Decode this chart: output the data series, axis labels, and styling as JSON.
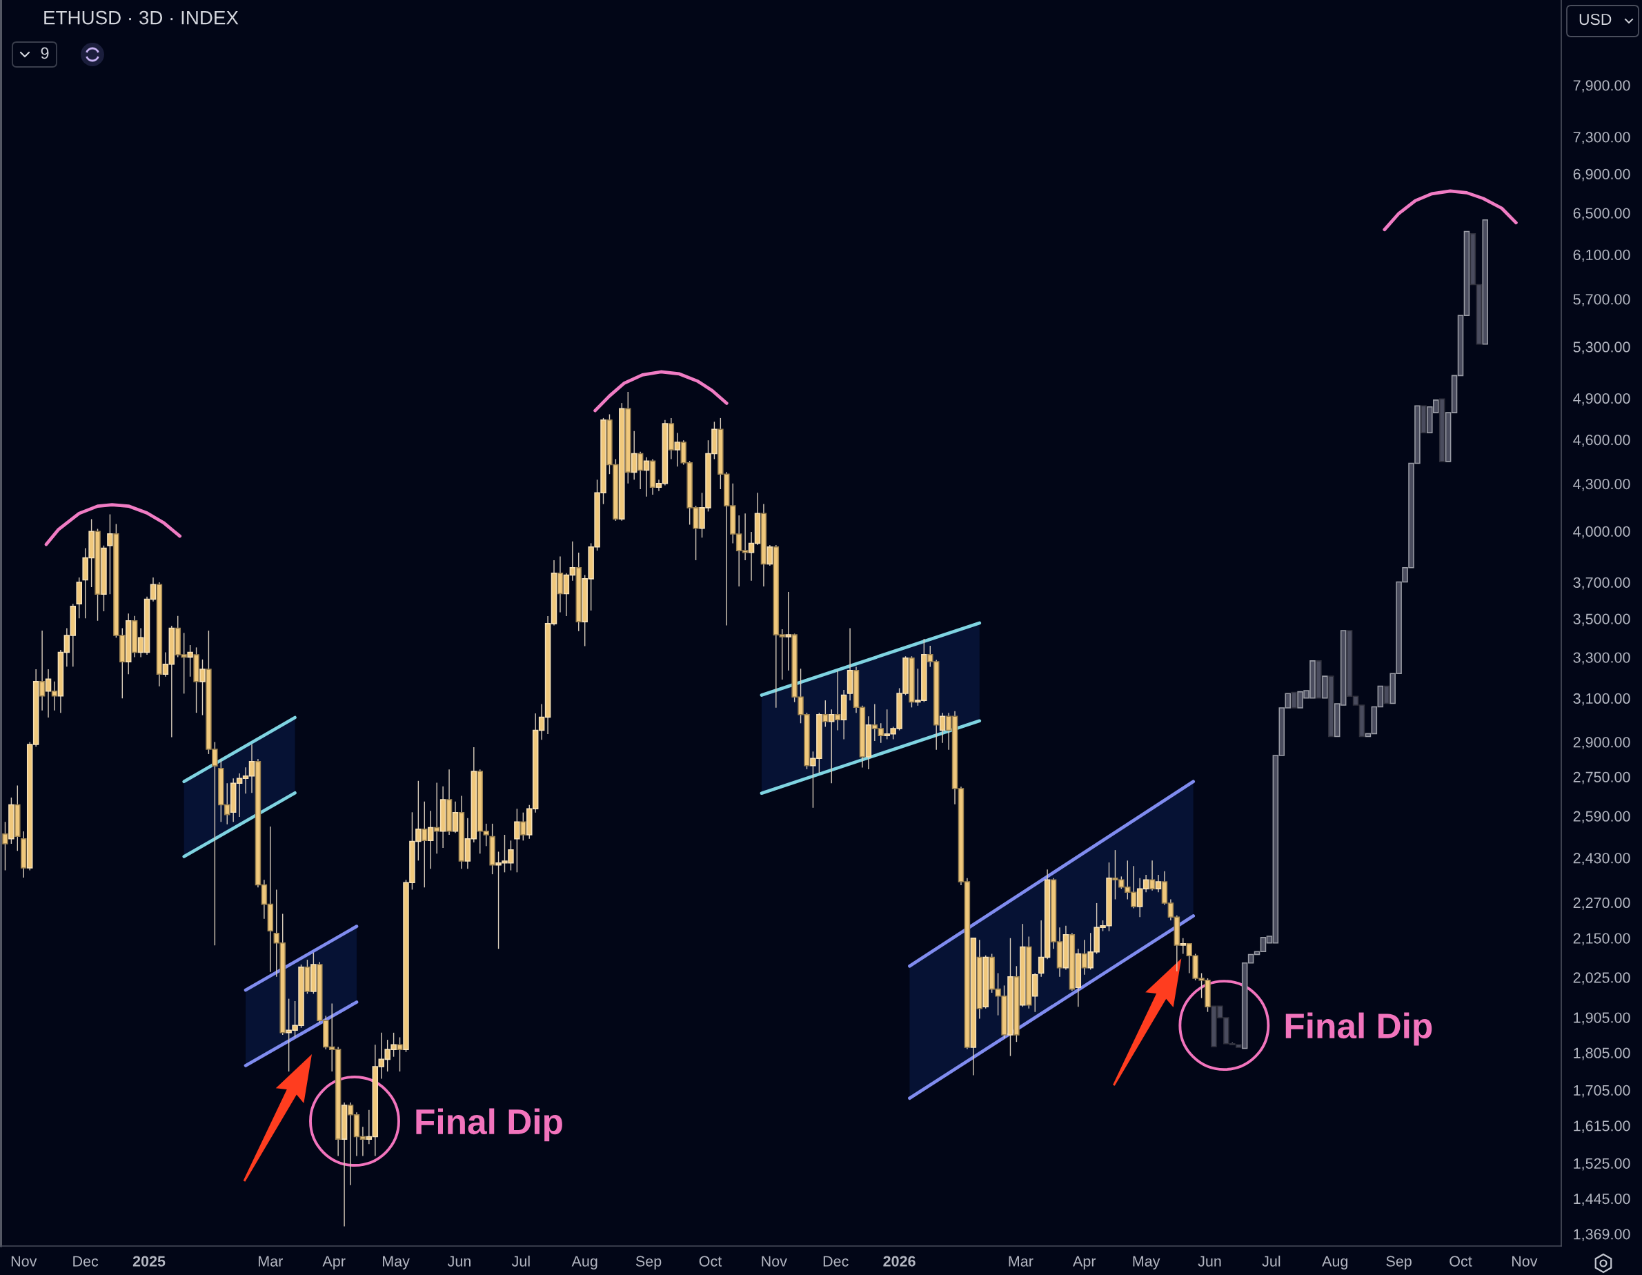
{
  "chart_data": {
    "type": "candlestick",
    "title": "ETHUSD · 3D · INDEX",
    "ylabel": "USD",
    "annotations": [
      "9",
      {
        "text": "Final Dip",
        "x": "2025-04-11",
        "y": 1626
      },
      {
        "text": "Final Dip",
        "x": "2026-06-08",
        "y": 1882
      }
    ],
    "xlim": [
      "2024-10-21",
      "2026-11-19"
    ],
    "ylim": [
      1344,
      8996
    ],
    "log": true,
    "grid": false,
    "xticks": [
      {
        "value": "2024-11-01",
        "label": "Nov"
      },
      {
        "value": "2024-12-01",
        "label": "Dec"
      },
      {
        "value": "2025-01-01",
        "label": "2025"
      },
      {
        "value": "2025-03-01",
        "label": "Mar"
      },
      {
        "value": "2025-04-01",
        "label": "Apr"
      },
      {
        "value": "2025-05-01",
        "label": "May"
      },
      {
        "value": "2025-06-01",
        "label": "Jun"
      },
      {
        "value": "2025-07-01",
        "label": "Jul"
      },
      {
        "value": "2025-08-01",
        "label": "Aug"
      },
      {
        "value": "2025-09-01",
        "label": "Sep"
      },
      {
        "value": "2025-10-01",
        "label": "Oct"
      },
      {
        "value": "2025-11-01",
        "label": "Nov"
      },
      {
        "value": "2025-12-01",
        "label": "Dec"
      },
      {
        "value": "2026-01-01",
        "label": "2026"
      },
      {
        "value": "2026-03-01",
        "label": "Mar"
      },
      {
        "value": "2026-04-01",
        "label": "Apr"
      },
      {
        "value": "2026-05-01",
        "label": "May"
      },
      {
        "value": "2026-06-01",
        "label": "Jun"
      },
      {
        "value": "2026-07-01",
        "label": "Jul"
      },
      {
        "value": "2026-08-01",
        "label": "Aug"
      },
      {
        "value": "2026-09-01",
        "label": "Sep"
      },
      {
        "value": "2026-10-01",
        "label": "Oct"
      },
      {
        "value": "2026-11-01",
        "label": "Nov"
      }
    ],
    "yticks": [
      {
        "value": 1369,
        "label": "1,369.00"
      },
      {
        "value": 1445,
        "label": "1,445.00"
      },
      {
        "value": 1525,
        "label": "1,525.00"
      },
      {
        "value": 1615,
        "label": "1,615.00"
      },
      {
        "value": 1705,
        "label": "1,705.00"
      },
      {
        "value": 1805,
        "label": "1,805.00"
      },
      {
        "value": 1905,
        "label": "1,905.00"
      },
      {
        "value": 2025,
        "label": "2,025.00"
      },
      {
        "value": 2150,
        "label": "2,150.00"
      },
      {
        "value": 2270,
        "label": "2,270.00"
      },
      {
        "value": 2430,
        "label": "2,430.00"
      },
      {
        "value": 2590,
        "label": "2,590.00"
      },
      {
        "value": 2750,
        "label": "2,750.00"
      },
      {
        "value": 2900,
        "label": "2,900.00"
      },
      {
        "value": 3100,
        "label": "3,100.00"
      },
      {
        "value": 3300,
        "label": "3,300.00"
      },
      {
        "value": 3500,
        "label": "3,500.00"
      },
      {
        "value": 3700,
        "label": "3,700.00"
      },
      {
        "value": 4000,
        "label": "4,000.00"
      },
      {
        "value": 4300,
        "label": "4,300.00"
      },
      {
        "value": 4600,
        "label": "4,600.00"
      },
      {
        "value": 4900,
        "label": "4,900.00"
      },
      {
        "value": 5300,
        "label": "5,300.00"
      },
      {
        "value": 5700,
        "label": "5,700.00"
      },
      {
        "value": 6100,
        "label": "6,100.00"
      },
      {
        "value": 6500,
        "label": "6,500.00"
      },
      {
        "value": 6900,
        "label": "6,900.00"
      },
      {
        "value": 7300,
        "label": "7,300.00"
      },
      {
        "value": 7900,
        "label": "7,900.00"
      }
    ],
    "series": [
      {
        "color": "#f0c87c",
        "x": [
          "2024-10-23",
          "2024-10-26",
          "2024-10-29",
          "2024-11-01",
          "2024-11-04",
          "2024-11-07",
          "2024-11-10",
          "2024-11-13",
          "2024-11-16",
          "2024-11-19",
          "2024-11-22",
          "2024-11-25",
          "2024-11-28",
          "2024-12-01",
          "2024-12-04",
          "2024-12-07",
          "2024-12-10",
          "2024-12-13",
          "2024-12-16",
          "2024-12-19",
          "2024-12-22",
          "2024-12-25",
          "2024-12-28",
          "2024-12-31",
          "2025-01-03",
          "2025-01-06",
          "2025-01-09",
          "2025-01-12",
          "2025-01-15",
          "2025-01-18",
          "2025-01-21",
          "2025-01-24",
          "2025-01-27",
          "2025-01-30",
          "2025-02-02",
          "2025-02-05",
          "2025-02-08",
          "2025-02-11",
          "2025-02-14",
          "2025-02-17",
          "2025-02-20",
          "2025-02-23",
          "2025-02-26",
          "2025-03-01",
          "2025-03-04",
          "2025-03-07",
          "2025-03-10",
          "2025-03-13",
          "2025-03-16",
          "2025-03-19",
          "2025-03-22",
          "2025-03-25",
          "2025-03-28",
          "2025-03-31",
          "2025-04-03",
          "2025-04-06",
          "2025-04-09",
          "2025-04-12",
          "2025-04-15",
          "2025-04-18",
          "2025-04-21",
          "2025-04-24",
          "2025-04-27",
          "2025-04-30",
          "2025-05-03",
          "2025-05-06",
          "2025-05-09",
          "2025-05-12",
          "2025-05-15",
          "2025-05-18",
          "2025-05-21",
          "2025-05-24",
          "2025-05-27",
          "2025-05-30",
          "2025-06-02",
          "2025-06-05",
          "2025-06-08",
          "2025-06-11",
          "2025-06-14",
          "2025-06-17",
          "2025-06-20",
          "2025-06-23",
          "2025-06-26",
          "2025-06-29",
          "2025-07-02",
          "2025-07-05",
          "2025-07-08",
          "2025-07-11",
          "2025-07-14",
          "2025-07-17",
          "2025-07-20",
          "2025-07-23",
          "2025-07-26",
          "2025-07-29",
          "2025-08-01",
          "2025-08-04",
          "2025-08-07",
          "2025-08-10",
          "2025-08-13",
          "2025-08-16",
          "2025-08-19",
          "2025-08-22",
          "2025-08-25",
          "2025-08-28",
          "2025-08-31",
          "2025-09-03",
          "2025-09-06",
          "2025-09-09",
          "2025-09-12",
          "2025-09-15",
          "2025-09-18",
          "2025-09-21",
          "2025-09-24",
          "2025-09-27",
          "2025-09-30",
          "2025-10-03",
          "2025-10-06",
          "2025-10-09",
          "2025-10-12",
          "2025-10-15",
          "2025-10-18",
          "2025-10-21",
          "2025-10-24",
          "2025-10-27",
          "2025-10-30",
          "2025-11-02",
          "2025-11-05",
          "2025-11-08",
          "2025-11-11",
          "2025-11-14",
          "2025-11-17",
          "2025-11-20",
          "2025-11-23",
          "2025-11-26",
          "2025-11-29",
          "2025-12-02",
          "2025-12-05",
          "2025-12-08",
          "2025-12-11",
          "2025-12-14",
          "2025-12-17",
          "2025-12-20",
          "2025-12-23",
          "2025-12-26",
          "2025-12-29",
          "2026-01-01",
          "2026-01-04",
          "2026-01-07",
          "2026-01-10",
          "2026-01-13",
          "2026-01-16",
          "2026-01-19",
          "2026-01-22",
          "2026-01-25",
          "2026-01-28",
          "2026-01-31",
          "2026-02-03",
          "2026-02-06",
          "2026-02-09",
          "2026-02-12",
          "2026-02-15",
          "2026-02-18",
          "2026-02-21",
          "2026-02-24",
          "2026-02-27",
          "2026-03-02",
          "2026-03-05",
          "2026-03-08",
          "2026-03-11",
          "2026-03-14",
          "2026-03-17",
          "2026-03-20",
          "2026-03-23",
          "2026-03-26",
          "2026-03-29",
          "2026-04-01",
          "2026-04-04",
          "2026-04-07",
          "2026-04-10",
          "2026-04-13",
          "2026-04-16",
          "2026-04-19",
          "2026-04-22",
          "2026-04-25",
          "2026-04-28",
          "2026-05-01",
          "2026-05-04",
          "2026-05-07",
          "2026-05-10",
          "2026-05-13",
          "2026-05-16",
          "2026-05-19",
          "2026-05-22",
          "2026-05-25",
          "2026-05-28",
          "2026-05-31"
        ],
        "ohlc": [
          [
            2520,
            2567,
            2384,
            2483
          ],
          [
            2502,
            2664,
            2483,
            2635
          ],
          [
            2635,
            2714,
            2456,
            2511
          ],
          [
            2502,
            2530,
            2358,
            2393
          ],
          [
            2393,
            2900,
            2384,
            2889
          ],
          [
            2889,
            3240,
            2879,
            3180
          ],
          [
            3180,
            3437,
            3043,
            3111
          ],
          [
            3134,
            3240,
            3010,
            3192
          ],
          [
            3134,
            3180,
            3043,
            3111
          ],
          [
            3111,
            3337,
            3032,
            3325
          ],
          [
            3325,
            3450,
            3253,
            3412
          ],
          [
            3412,
            3580,
            3253,
            3567
          ],
          [
            3580,
            3727,
            3502,
            3700
          ],
          [
            3714,
            3898,
            3502,
            3841
          ],
          [
            3841,
            4074,
            3673,
            3999
          ],
          [
            3999,
            4014,
            3489,
            3633
          ],
          [
            3633,
            3913,
            3540,
            3898
          ],
          [
            3913,
            4104,
            3633,
            3984
          ],
          [
            3984,
            4044,
            3400,
            3412
          ],
          [
            3412,
            3450,
            3099,
            3277
          ],
          [
            3277,
            3528,
            3216,
            3489
          ],
          [
            3489,
            3515,
            3301,
            3325
          ],
          [
            3325,
            3450,
            3301,
            3400
          ],
          [
            3325,
            3620,
            3313,
            3606
          ],
          [
            3606,
            3727,
            3593,
            3687
          ],
          [
            3687,
            3700,
            3157,
            3216
          ],
          [
            3216,
            3325,
            3204,
            3265
          ],
          [
            3265,
            3463,
            2921,
            3450
          ],
          [
            3450,
            3515,
            3301,
            3313
          ],
          [
            3313,
            3425,
            3122,
            3301
          ],
          [
            3301,
            3362,
            3204,
            3325
          ],
          [
            3313,
            3350,
            3032,
            3180
          ],
          [
            3180,
            3289,
            3021,
            3240
          ],
          [
            3240,
            3437,
            2847,
            2868
          ],
          [
            2868,
            2900,
            2126,
            2796
          ],
          [
            2785,
            2826,
            2567,
            2635
          ],
          [
            2635,
            2723,
            2558,
            2596
          ],
          [
            2605,
            2743,
            2567,
            2723
          ],
          [
            2723,
            2764,
            2587,
            2743
          ],
          [
            2743,
            2790,
            2680,
            2753
          ],
          [
            2753,
            2889,
            2683,
            2815
          ],
          [
            2815,
            2826,
            2323,
            2332
          ],
          [
            2332,
            2350,
            2214,
            2264
          ],
          [
            2264,
            2549,
            2042,
            2174
          ],
          [
            2166,
            2315,
            2027,
            2134
          ],
          [
            2134,
            2231,
            1855,
            1861
          ],
          [
            1861,
            1960,
            1754,
            1868
          ],
          [
            1868,
            1953,
            1848,
            1882
          ],
          [
            1882,
            2065,
            1875,
            2057
          ],
          [
            2057,
            2080,
            1975,
            1982
          ],
          [
            1982,
            2103,
            1975,
            2065
          ],
          [
            2065,
            2073,
            1889,
            1896
          ],
          [
            1896,
            1910,
            1814,
            1821
          ],
          [
            1821,
            1946,
            1754,
            1814
          ],
          [
            1814,
            1821,
            1542,
            1582
          ],
          [
            1582,
            1673,
            1385,
            1666
          ],
          [
            1666,
            1673,
            1475,
            1642
          ],
          [
            1642,
            1648,
            1542,
            1588
          ],
          [
            1588,
            1612,
            1542,
            1582
          ],
          [
            1582,
            1654,
            1570,
            1588
          ],
          [
            1588,
            1827,
            1542,
            1767
          ],
          [
            1767,
            1861,
            1735,
            1787
          ],
          [
            1787,
            1841,
            1754,
            1814
          ],
          [
            1814,
            1861,
            1794,
            1827
          ],
          [
            1827,
            1848,
            1754,
            1814
          ],
          [
            1814,
            2350,
            1807,
            2340
          ],
          [
            2340,
            2605,
            2315,
            2492
          ],
          [
            2492,
            2733,
            2420,
            2539
          ],
          [
            2539,
            2648,
            2323,
            2495
          ],
          [
            2495,
            2611,
            2390,
            2545
          ],
          [
            2545,
            2725,
            2446,
            2531
          ],
          [
            2531,
            2710,
            2467,
            2656
          ],
          [
            2656,
            2781,
            2517,
            2531
          ],
          [
            2531,
            2648,
            2524,
            2604
          ],
          [
            2604,
            2671,
            2390,
            2418
          ],
          [
            2418,
            2582,
            2390,
            2502
          ],
          [
            2502,
            2877,
            2488,
            2773
          ],
          [
            2773,
            2781,
            2446,
            2531
          ],
          [
            2531,
            2560,
            2474,
            2517
          ],
          [
            2510,
            2560,
            2370,
            2404
          ],
          [
            2404,
            2453,
            2115,
            2411
          ],
          [
            2411,
            2517,
            2377,
            2418
          ],
          [
            2411,
            2495,
            2384,
            2460
          ],
          [
            2502,
            2619,
            2377,
            2567
          ],
          [
            2567,
            2604,
            2495,
            2517
          ],
          [
            2517,
            2634,
            2502,
            2619
          ],
          [
            2619,
            3029,
            2604,
            2952
          ],
          [
            2952,
            3073,
            2910,
            3012
          ],
          [
            3012,
            3514,
            2935,
            3474
          ],
          [
            3474,
            3827,
            3464,
            3752
          ],
          [
            3752,
            3849,
            3534,
            3636
          ],
          [
            3636,
            3752,
            3514,
            3741
          ],
          [
            3741,
            3938,
            3709,
            3784
          ],
          [
            3784,
            3871,
            3434,
            3484
          ],
          [
            3484,
            3741,
            3357,
            3720
          ],
          [
            3720,
            3927,
            3544,
            3905
          ],
          [
            3905,
            4327,
            3883,
            4241
          ],
          [
            4241,
            4754,
            4169,
            4740
          ],
          [
            4740,
            4781,
            4364,
            4427
          ],
          [
            4427,
            4465,
            4064,
            4075
          ],
          [
            4075,
            4864,
            4064,
            4822
          ],
          [
            4822,
            4948,
            4302,
            4377
          ],
          [
            4377,
            4660,
            4327,
            4503
          ],
          [
            4503,
            4516,
            4265,
            4390
          ],
          [
            4390,
            4478,
            4217,
            4452
          ],
          [
            4452,
            4465,
            4229,
            4277
          ],
          [
            4277,
            4327,
            4253,
            4302
          ],
          [
            4302,
            4740,
            4290,
            4713
          ],
          [
            4713,
            4754,
            4465,
            4529
          ],
          [
            4529,
            4647,
            4415,
            4581
          ],
          [
            4581,
            4595,
            4427,
            4440
          ],
          [
            4440,
            4452,
            4040,
            4146
          ],
          [
            4146,
            4158,
            3827,
            4018
          ],
          [
            4018,
            4241,
            3961,
            4146
          ],
          [
            4146,
            4595,
            4122,
            4503
          ],
          [
            4503,
            4727,
            4465,
            4673
          ],
          [
            4673,
            4754,
            4265,
            4364
          ],
          [
            4364,
            4377,
            3464,
            4158
          ],
          [
            4158,
            4302,
            3927,
            3983
          ],
          [
            3983,
            4098,
            3677,
            3883
          ],
          [
            3883,
            4110,
            3827,
            3872
          ],
          [
            3872,
            3995,
            3709,
            3927
          ],
          [
            3927,
            4241,
            3916,
            4110
          ],
          [
            4110,
            4169,
            3677,
            3805
          ],
          [
            3805,
            3916,
            3795,
            3905
          ],
          [
            3905,
            3916,
            3056,
            3415
          ],
          [
            3415,
            3444,
            3190,
            3405
          ],
          [
            3405,
            3646,
            3234,
            3415
          ],
          [
            3415,
            3421,
            3082,
            3106
          ],
          [
            3106,
            3243,
            2984,
            3024
          ],
          [
            3024,
            3032,
            2782,
            2797
          ],
          [
            2797,
            2858,
            2623,
            2828
          ],
          [
            2828,
            3032,
            2767,
            3024
          ],
          [
            3024,
            3090,
            2968,
            2992
          ],
          [
            2992,
            3048,
            2723,
            3024
          ],
          [
            3024,
            3234,
            2952,
            3000
          ],
          [
            3000,
            3140,
            2912,
            3115
          ],
          [
            3123,
            3450,
            3090,
            3234
          ],
          [
            3234,
            3252,
            3032,
            3057
          ],
          [
            3057,
            3065,
            2789,
            2835
          ],
          [
            2835,
            3016,
            2782,
            2976
          ],
          [
            2976,
            3073,
            2904,
            2960
          ],
          [
            2960,
            2984,
            2896,
            2928
          ],
          [
            2928,
            3048,
            2912,
            2936
          ],
          [
            2936,
            2968,
            2912,
            2960
          ],
          [
            2960,
            3148,
            2952,
            3123
          ],
          [
            3123,
            3305,
            3115,
            3296
          ],
          [
            3296,
            3305,
            3057,
            3082
          ],
          [
            3082,
            3243,
            3065,
            3090
          ],
          [
            3090,
            3394,
            3082,
            3314
          ],
          [
            3314,
            3358,
            3252,
            3278
          ],
          [
            3278,
            3287,
            2866,
            2976
          ],
          [
            2952,
            3032,
            2896,
            3016
          ],
          [
            3016,
            3032,
            2866,
            2952
          ],
          [
            3016,
            3040,
            2637,
            2701
          ],
          [
            2701,
            2709,
            2331,
            2343
          ],
          [
            2343,
            2356,
            1815,
            1820
          ],
          [
            1820,
            2150,
            1744,
            2150
          ],
          [
            2088,
            2144,
            1901,
            1931
          ],
          [
            1936,
            2094,
            1931,
            2088
          ],
          [
            2088,
            2099,
            1978,
            1989
          ],
          [
            1989,
            2038,
            1911,
            1968
          ],
          [
            1968,
            2000,
            1845,
            1855
          ],
          [
            1855,
            2150,
            1796,
            2027
          ],
          [
            2027,
            2060,
            1835,
            1855
          ],
          [
            1941,
            2197,
            1936,
            2121
          ],
          [
            2121,
            2155,
            1931,
            1941
          ],
          [
            1968,
            2038,
            1921,
            2033
          ],
          [
            2038,
            2209,
            2027,
            2088
          ],
          [
            2088,
            2387,
            2082,
            2350
          ],
          [
            2350,
            2356,
            2115,
            2138
          ],
          [
            2138,
            2185,
            2027,
            2055
          ],
          [
            2055,
            2191,
            2049,
            2161
          ],
          [
            2161,
            2167,
            1984,
            1989
          ],
          [
            1994,
            2115,
            1936,
            2099
          ],
          [
            2099,
            2144,
            2033,
            2055
          ],
          [
            2055,
            2167,
            2049,
            2105
          ],
          [
            2105,
            2268,
            2099,
            2185
          ],
          [
            2185,
            2209,
            2173,
            2191
          ],
          [
            2191,
            2413,
            2173,
            2356
          ],
          [
            2356,
            2459,
            2281,
            2350
          ],
          [
            2350,
            2362,
            2318,
            2324
          ],
          [
            2324,
            2420,
            2281,
            2306
          ],
          [
            2306,
            2400,
            2250,
            2256
          ],
          [
            2256,
            2356,
            2220,
            2318
          ],
          [
            2318,
            2368,
            2306,
            2350
          ],
          [
            2350,
            2420,
            2312,
            2318
          ],
          [
            2318,
            2368,
            2306,
            2343
          ],
          [
            2343,
            2381,
            2262,
            2268
          ],
          [
            2268,
            2281,
            2209,
            2220
          ],
          [
            2220,
            2226,
            2044,
            2127
          ],
          [
            2127,
            2150,
            2099,
            2132
          ],
          [
            2132,
            2132,
            2038,
            2093
          ],
          [
            2093,
            2099,
            2016,
            2022
          ],
          [
            2022,
            2038,
            1962,
            2016
          ],
          [
            2016,
            2022,
            1921,
            1936
          ]
        ]
      },
      {
        "color": "#4a4c5e",
        "x": [
          "2026-06-03",
          "2026-06-06",
          "2026-06-09",
          "2026-06-12",
          "2026-06-15",
          "2026-06-18",
          "2026-06-21",
          "2026-06-24",
          "2026-06-27",
          "2026-06-30",
          "2026-07-03",
          "2026-07-06",
          "2026-07-09",
          "2026-07-12",
          "2026-07-15",
          "2026-07-18",
          "2026-07-21",
          "2026-07-24",
          "2026-07-27",
          "2026-07-30",
          "2026-08-02",
          "2026-08-05",
          "2026-08-08",
          "2026-08-11",
          "2026-08-14",
          "2026-08-17",
          "2026-08-20",
          "2026-08-23",
          "2026-08-26",
          "2026-08-29",
          "2026-09-01",
          "2026-09-04",
          "2026-09-07",
          "2026-09-10",
          "2026-09-13",
          "2026-09-16",
          "2026-09-19",
          "2026-09-22",
          "2026-09-25",
          "2026-09-28",
          "2026-10-01",
          "2026-10-04",
          "2026-10-07",
          "2026-10-10",
          "2026-10-13"
        ],
        "ohlc": [
          [
            1938,
            1938,
            1822,
            1822
          ],
          [
            1938,
            1938,
            1904,
            1904
          ],
          [
            1904,
            1904,
            1830,
            1830
          ],
          [
            1830,
            1833,
            1827,
            1827
          ],
          [
            1827,
            1827,
            1820,
            1820
          ],
          [
            1817,
            2070,
            1817,
            2070
          ],
          [
            2070,
            2097,
            2070,
            2097
          ],
          [
            2097,
            2106,
            2097,
            2106
          ],
          [
            2106,
            2152,
            2106,
            2152
          ],
          [
            2134,
            2156,
            2134,
            2156
          ],
          [
            2134,
            2841,
            2134,
            2841
          ],
          [
            2841,
            3055,
            2841,
            3055
          ],
          [
            3055,
            3122,
            3055,
            3122
          ],
          [
            3128,
            3128,
            3055,
            3055
          ],
          [
            3055,
            3131,
            3055,
            3131
          ],
          [
            3101,
            3136,
            3101,
            3136
          ],
          [
            3101,
            3282,
            3101,
            3282
          ],
          [
            3282,
            3282,
            3101,
            3101
          ],
          [
            3101,
            3206,
            3101,
            3206
          ],
          [
            3206,
            3206,
            2924,
            2924
          ],
          [
            2924,
            3074,
            2924,
            3074
          ],
          [
            3068,
            3437,
            3068,
            3437
          ],
          [
            3437,
            3437,
            3109,
            3109
          ],
          [
            3109,
            3109,
            3068,
            3068
          ],
          [
            3068,
            3068,
            2924,
            2924
          ],
          [
            2924,
            2937,
            2924,
            2937
          ],
          [
            2937,
            3060,
            2937,
            3060
          ],
          [
            3060,
            3158,
            3060,
            3158
          ],
          [
            3158,
            3158,
            3076,
            3076
          ],
          [
            3076,
            3219,
            3076,
            3219
          ],
          [
            3219,
            3702,
            3219,
            3702
          ],
          [
            3702,
            3784,
            3702,
            3784
          ],
          [
            3784,
            4437,
            3784,
            4437
          ],
          [
            4437,
            4843,
            4437,
            4843
          ],
          [
            4843,
            4843,
            4648,
            4648
          ],
          [
            4648,
            4835,
            4648,
            4835
          ],
          [
            4793,
            4886,
            4793,
            4886
          ],
          [
            4894,
            4894,
            4449,
            4449
          ],
          [
            4449,
            4793,
            4449,
            4793
          ],
          [
            4793,
            5072,
            4793,
            5072
          ],
          [
            5072,
            5559,
            5072,
            5559
          ],
          [
            5559,
            6320,
            5559,
            6320
          ],
          [
            6298,
            6298,
            5827,
            5827
          ],
          [
            5827,
            5827,
            5322,
            5322
          ],
          [
            5322,
            6432,
            5322,
            6432
          ]
        ]
      },
      {
        "type": "line",
        "color": "#7fd4e2",
        "x": [
          "2025-01-18",
          "2025-03-13"
        ],
        "values": [
          2730,
          3010
        ]
      },
      {
        "type": "line",
        "color": "#7fd4e2",
        "x": [
          "2025-01-18",
          "2025-03-13"
        ],
        "values": [
          2435,
          2683
        ]
      },
      {
        "type": "line",
        "color": "#808cf0",
        "x": [
          "2025-02-17",
          "2025-04-12"
        ],
        "values": [
          1986,
          2189
        ]
      },
      {
        "type": "line",
        "color": "#808cf0",
        "x": [
          "2025-02-17",
          "2025-04-12"
        ],
        "values": [
          1770,
          1950
        ]
      },
      {
        "type": "line",
        "color": "#7fd4e2",
        "x": [
          "2025-10-26",
          "2026-02-09"
        ],
        "values": [
          3115,
          3477
        ]
      },
      {
        "type": "line",
        "color": "#7fd4e2",
        "x": [
          "2025-10-26",
          "2026-02-09"
        ],
        "values": [
          2682,
          2995
        ]
      },
      {
        "type": "line",
        "color": "#808cf0",
        "x": [
          "2026-01-06",
          "2026-05-24"
        ],
        "values": [
          2060,
          2730
        ]
      },
      {
        "type": "line",
        "color": "#808cf0",
        "x": [
          "2026-01-06",
          "2026-05-24"
        ],
        "values": [
          1684,
          2224
        ]
      },
      {
        "type": "line",
        "color": "#f07cc4",
        "x": [
          "2024-11-12",
          "2024-11-18",
          "2024-11-28",
          "2024-12-07",
          "2024-12-14",
          "2024-12-22",
          "2024-12-31",
          "2025-01-08",
          "2025-01-16"
        ],
        "values": [
          3920,
          4011,
          4110,
          4156,
          4165,
          4156,
          4113,
          4053,
          3970
        ]
      },
      {
        "type": "line",
        "color": "#f07cc4",
        "x": [
          "2025-08-06",
          "2025-08-13",
          "2025-08-20",
          "2025-08-29",
          "2025-09-07",
          "2025-09-16",
          "2025-09-25",
          "2025-10-02",
          "2025-10-09"
        ],
        "values": [
          4808,
          4917,
          5012,
          5077,
          5101,
          5085,
          5028,
          4957,
          4862
        ]
      },
      {
        "type": "line",
        "color": "#f07cc4",
        "x": [
          "2026-08-25",
          "2026-09-01",
          "2026-09-09",
          "2026-09-17",
          "2026-09-26",
          "2026-10-04",
          "2026-10-12",
          "2026-10-21",
          "2026-10-28"
        ],
        "values": [
          6337,
          6496,
          6623,
          6693,
          6722,
          6704,
          6646,
          6548,
          6404
        ]
      }
    ]
  }
}
